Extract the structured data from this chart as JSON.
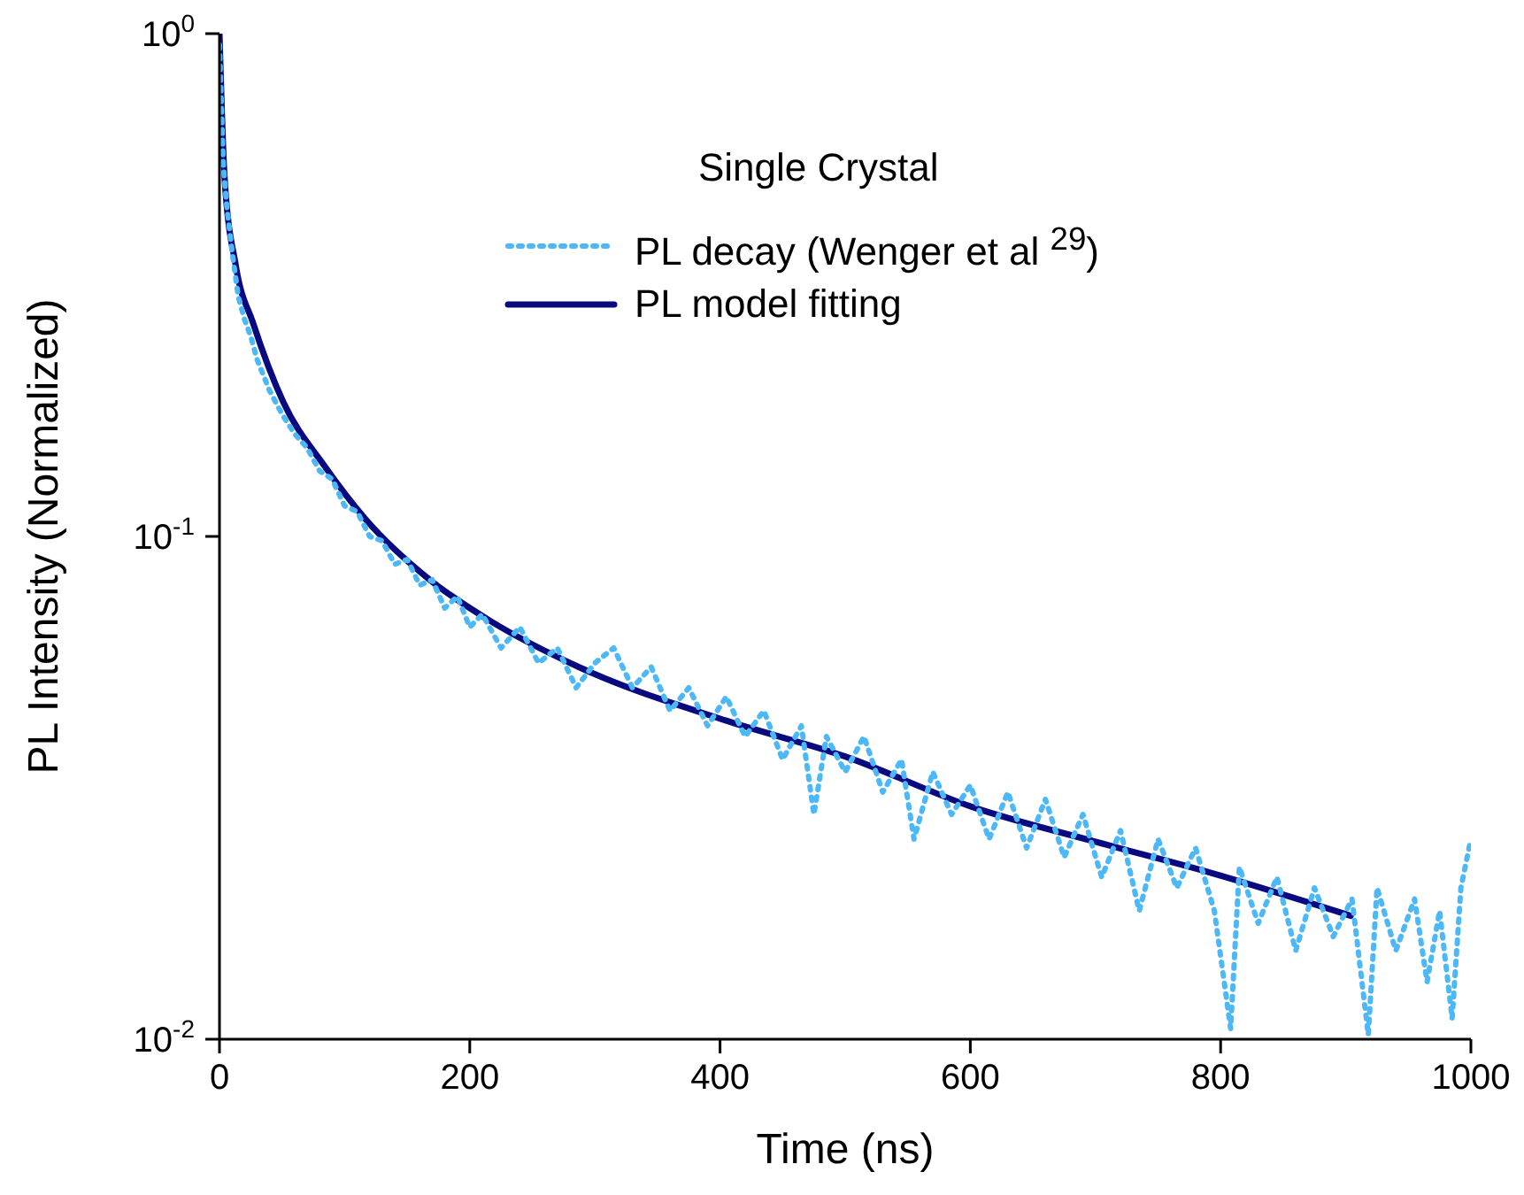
{
  "chart_data": {
    "type": "line",
    "xlabel": "Time (ns)",
    "ylabel": "PL Intensity (Normalized)",
    "legend_title": "Single Crystal",
    "legend": "top right",
    "log": "y",
    "grid": false,
    "xlim": [
      0,
      1000
    ],
    "xticks": [
      0,
      200,
      400,
      600,
      800,
      1000
    ],
    "ylim": [
      0.01,
      1
    ],
    "yticks": [
      {
        "value": 0.01,
        "label": "10$^{-2}$"
      },
      {
        "value": 0.1,
        "label": "10$^{-1}$"
      },
      {
        "value": 1,
        "label": "10$^{0}$"
      }
    ],
    "series": [
      {
        "name": "PL decay (Wenger et al $^{29}$)",
        "color": "#4db8f8",
        "line_style": "dotted",
        "marker": "none",
        "x": [
          0,
          3,
          6,
          10,
          15,
          20,
          25,
          30,
          40,
          50,
          60,
          70,
          80,
          90,
          100,
          110,
          120,
          130,
          140,
          150,
          160,
          170,
          180,
          190,
          200,
          210,
          225,
          240,
          255,
          270,
          285,
          300,
          315,
          330,
          345,
          360,
          375,
          390,
          405,
          420,
          435,
          450,
          465,
          475,
          485,
          500,
          515,
          530,
          545,
          555,
          570,
          585,
          600,
          615,
          630,
          645,
          660,
          675,
          690,
          705,
          720,
          735,
          750,
          765,
          780,
          795,
          808,
          815,
          830,
          845,
          860,
          875,
          890,
          905,
          918,
          925,
          940,
          955,
          965,
          975,
          985,
          992,
          1000
        ],
        "values": [
          0.95,
          0.55,
          0.45,
          0.37,
          0.3,
          0.27,
          0.25,
          0.225,
          0.195,
          0.175,
          0.16,
          0.15,
          0.135,
          0.13,
          0.115,
          0.112,
          0.1,
          0.098,
          0.088,
          0.09,
          0.08,
          0.082,
          0.072,
          0.076,
          0.066,
          0.07,
          0.06,
          0.066,
          0.056,
          0.06,
          0.05,
          0.056,
          0.06,
          0.05,
          0.055,
          0.045,
          0.05,
          0.042,
          0.048,
          0.04,
          0.045,
          0.036,
          0.042,
          0.028,
          0.04,
          0.034,
          0.04,
          0.031,
          0.036,
          0.025,
          0.034,
          0.028,
          0.032,
          0.025,
          0.031,
          0.024,
          0.03,
          0.023,
          0.028,
          0.021,
          0.026,
          0.018,
          0.025,
          0.02,
          0.024,
          0.018,
          0.0105,
          0.022,
          0.017,
          0.021,
          0.015,
          0.02,
          0.016,
          0.019,
          0.0102,
          0.02,
          0.015,
          0.019,
          0.013,
          0.018,
          0.011,
          0.02,
          0.025
        ]
      },
      {
        "name": "PL model fitting",
        "color": "#0a0a80",
        "line_style": "solid",
        "marker": "none",
        "x": [
          0,
          4,
          13,
          27,
          51,
          84,
          117,
          168,
          216,
          287,
          405,
          500,
          601,
          700,
          793,
          904
        ],
        "values": [
          1,
          0.52,
          0.346,
          0.265,
          0.185,
          0.138,
          0.108,
          0.082,
          0.068,
          0.055,
          0.043,
          0.0365,
          0.029,
          0.0247,
          0.0214,
          0.0176
        ]
      }
    ]
  }
}
